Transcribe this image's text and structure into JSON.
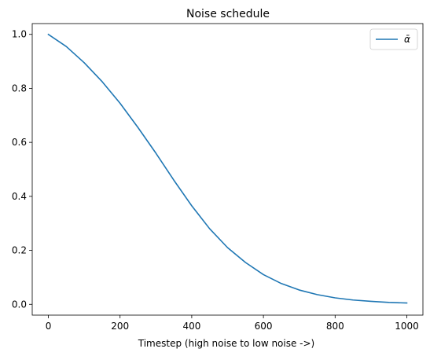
{
  "chart_data": {
    "type": "line",
    "title": "Noise schedule",
    "xlabel": "Timestep (high noise to low noise ->)",
    "ylabel": "",
    "xlim": [
      -45,
      1045
    ],
    "ylim": [
      -0.04,
      1.04
    ],
    "xticks": [
      0,
      200,
      400,
      600,
      800,
      1000
    ],
    "yticks": [
      0.0,
      0.2,
      0.4,
      0.6,
      0.8,
      1.0
    ],
    "xtick_labels": [
      "0",
      "200",
      "400",
      "600",
      "800",
      "1000"
    ],
    "ytick_labels": [
      "0.0",
      "0.2",
      "0.4",
      "0.6",
      "0.8",
      "1.0"
    ],
    "grid": false,
    "legend_position": "top-right",
    "series": [
      {
        "name": "ᾱ",
        "color": "#1f77b4",
        "x": [
          0,
          50,
          100,
          150,
          200,
          250,
          300,
          350,
          400,
          450,
          500,
          550,
          600,
          650,
          700,
          750,
          800,
          850,
          900,
          950,
          1000
        ],
        "y": [
          1.0,
          0.955,
          0.895,
          0.825,
          0.745,
          0.655,
          0.56,
          0.46,
          0.365,
          0.28,
          0.21,
          0.155,
          0.11,
          0.077,
          0.053,
          0.036,
          0.024,
          0.016,
          0.011,
          0.007,
          0.005
        ]
      }
    ]
  }
}
